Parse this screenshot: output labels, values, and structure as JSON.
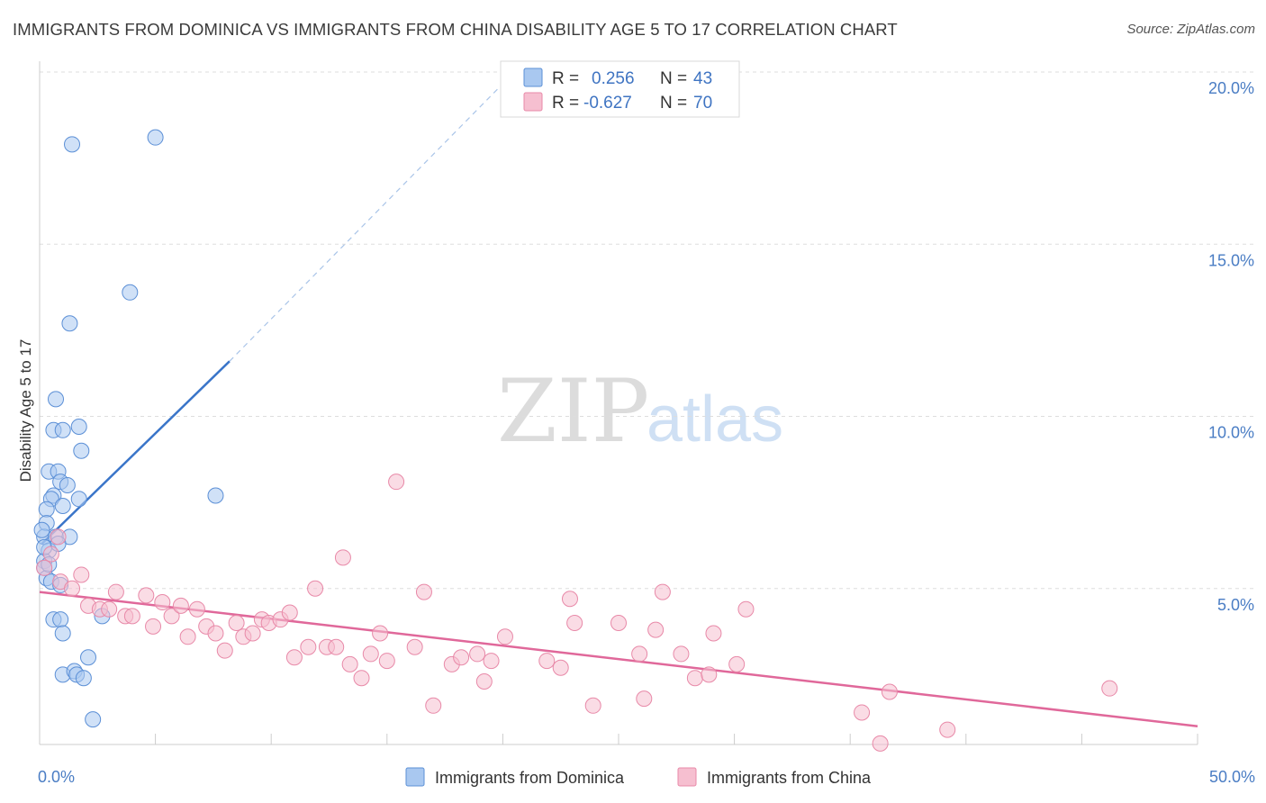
{
  "title": "IMMIGRANTS FROM DOMINICA VS IMMIGRANTS FROM CHINA DISABILITY AGE 5 TO 17 CORRELATION CHART",
  "source": "Source: ZipAtlas.com",
  "watermark": {
    "zip": "ZIP",
    "atlas": "atlas"
  },
  "colors": {
    "dominica_fill": "#a9c8f0",
    "dominica_stroke": "#5b8fd6",
    "dominica_line": "#3a75c9",
    "china_fill": "#f6bfd0",
    "china_stroke": "#e889a8",
    "china_line": "#e0689a",
    "grid": "#dddddd",
    "axis_text": "#4a7dc4"
  },
  "legend": {
    "rows": [
      {
        "r_label": "R =",
        "r_value": "0.256",
        "n_label": "N =",
        "n_value": "43"
      },
      {
        "r_label": "R =",
        "r_value": "-0.627",
        "n_label": "N =",
        "n_value": "70"
      }
    ]
  },
  "chart_data": {
    "type": "scatter",
    "title": "IMMIGRANTS FROM DOMINICA VS IMMIGRANTS FROM CHINA DISABILITY AGE 5 TO 17 CORRELATION CHART",
    "xlabel": "",
    "ylabel": "Disability Age 5 to 17",
    "xlim": [
      0,
      50
    ],
    "ylim": [
      0,
      20
    ],
    "x_tick_labels": [
      "0.0%",
      "50.0%"
    ],
    "y_ticks": [
      5,
      10,
      15,
      20
    ],
    "y_tick_labels": [
      "5.0%",
      "10.0%",
      "15.0%",
      "20.0%"
    ],
    "grid": true,
    "legend_position": "top-center",
    "series": [
      {
        "name": "Immigrants from Dominica",
        "r": 0.256,
        "n": 43,
        "trend": {
          "x": [
            0.1,
            8.2
          ],
          "y": [
            6.3,
            11.6
          ]
        },
        "trend_extension": {
          "x": [
            8.2,
            20.5
          ],
          "y": [
            11.6,
            20.0
          ]
        },
        "points": [
          {
            "x": 1.4,
            "y": 17.9
          },
          {
            "x": 5.0,
            "y": 18.1
          },
          {
            "x": 3.9,
            "y": 13.6
          },
          {
            "x": 1.3,
            "y": 12.7
          },
          {
            "x": 0.7,
            "y": 10.5
          },
          {
            "x": 0.6,
            "y": 9.6
          },
          {
            "x": 1.0,
            "y": 9.6
          },
          {
            "x": 1.7,
            "y": 9.7
          },
          {
            "x": 1.8,
            "y": 9.0
          },
          {
            "x": 0.4,
            "y": 8.4
          },
          {
            "x": 0.8,
            "y": 8.4
          },
          {
            "x": 0.9,
            "y": 8.1
          },
          {
            "x": 0.6,
            "y": 7.7
          },
          {
            "x": 0.5,
            "y": 7.6
          },
          {
            "x": 1.7,
            "y": 7.6
          },
          {
            "x": 1.0,
            "y": 7.4
          },
          {
            "x": 0.3,
            "y": 7.3
          },
          {
            "x": 7.6,
            "y": 7.7
          },
          {
            "x": 0.3,
            "y": 6.9
          },
          {
            "x": 0.2,
            "y": 6.5
          },
          {
            "x": 0.7,
            "y": 6.5
          },
          {
            "x": 1.3,
            "y": 6.5
          },
          {
            "x": 0.4,
            "y": 6.1
          },
          {
            "x": 0.2,
            "y": 5.8
          },
          {
            "x": 0.2,
            "y": 5.6
          },
          {
            "x": 0.3,
            "y": 5.3
          },
          {
            "x": 0.5,
            "y": 5.2
          },
          {
            "x": 0.9,
            "y": 5.1
          },
          {
            "x": 0.6,
            "y": 4.1
          },
          {
            "x": 0.9,
            "y": 4.1
          },
          {
            "x": 1.0,
            "y": 3.7
          },
          {
            "x": 2.7,
            "y": 4.2
          },
          {
            "x": 2.1,
            "y": 3.0
          },
          {
            "x": 1.0,
            "y": 2.5
          },
          {
            "x": 1.5,
            "y": 2.6
          },
          {
            "x": 1.6,
            "y": 2.5
          },
          {
            "x": 1.9,
            "y": 2.4
          },
          {
            "x": 2.3,
            "y": 1.2
          },
          {
            "x": 0.1,
            "y": 6.7
          },
          {
            "x": 0.2,
            "y": 6.2
          },
          {
            "x": 0.4,
            "y": 5.7
          },
          {
            "x": 1.2,
            "y": 8.0
          },
          {
            "x": 0.8,
            "y": 6.3
          }
        ]
      },
      {
        "name": "Immigrants from China",
        "r": -0.627,
        "n": 70,
        "trend": {
          "x": [
            0,
            50
          ],
          "y": [
            4.9,
            1.0
          ]
        },
        "points": [
          {
            "x": 0.2,
            "y": 5.6
          },
          {
            "x": 0.5,
            "y": 6.0
          },
          {
            "x": 0.8,
            "y": 6.5
          },
          {
            "x": 0.9,
            "y": 5.2
          },
          {
            "x": 1.4,
            "y": 5.0
          },
          {
            "x": 1.8,
            "y": 5.4
          },
          {
            "x": 2.1,
            "y": 4.5
          },
          {
            "x": 2.6,
            "y": 4.4
          },
          {
            "x": 3.0,
            "y": 4.4
          },
          {
            "x": 3.3,
            "y": 4.9
          },
          {
            "x": 3.7,
            "y": 4.2
          },
          {
            "x": 4.0,
            "y": 4.2
          },
          {
            "x": 4.6,
            "y": 4.8
          },
          {
            "x": 4.9,
            "y": 3.9
          },
          {
            "x": 5.3,
            "y": 4.6
          },
          {
            "x": 5.7,
            "y": 4.2
          },
          {
            "x": 6.1,
            "y": 4.5
          },
          {
            "x": 6.4,
            "y": 3.6
          },
          {
            "x": 6.8,
            "y": 4.4
          },
          {
            "x": 7.2,
            "y": 3.9
          },
          {
            "x": 7.6,
            "y": 3.7
          },
          {
            "x": 8.0,
            "y": 3.2
          },
          {
            "x": 8.5,
            "y": 4.0
          },
          {
            "x": 8.8,
            "y": 3.6
          },
          {
            "x": 9.2,
            "y": 3.7
          },
          {
            "x": 9.6,
            "y": 4.1
          },
          {
            "x": 9.9,
            "y": 4.0
          },
          {
            "x": 10.4,
            "y": 4.1
          },
          {
            "x": 10.8,
            "y": 4.3
          },
          {
            "x": 11.0,
            "y": 3.0
          },
          {
            "x": 11.6,
            "y": 3.3
          },
          {
            "x": 11.9,
            "y": 5.0
          },
          {
            "x": 12.4,
            "y": 3.3
          },
          {
            "x": 12.8,
            "y": 3.3
          },
          {
            "x": 13.1,
            "y": 5.9
          },
          {
            "x": 13.4,
            "y": 2.8
          },
          {
            "x": 13.9,
            "y": 2.4
          },
          {
            "x": 14.3,
            "y": 3.1
          },
          {
            "x": 14.7,
            "y": 3.7
          },
          {
            "x": 15.0,
            "y": 2.9
          },
          {
            "x": 15.4,
            "y": 8.1
          },
          {
            "x": 16.2,
            "y": 3.3
          },
          {
            "x": 16.6,
            "y": 4.9
          },
          {
            "x": 17.0,
            "y": 1.6
          },
          {
            "x": 17.8,
            "y": 2.8
          },
          {
            "x": 18.2,
            "y": 3.0
          },
          {
            "x": 18.9,
            "y": 3.1
          },
          {
            "x": 19.2,
            "y": 2.3
          },
          {
            "x": 19.5,
            "y": 2.9
          },
          {
            "x": 20.1,
            "y": 3.6
          },
          {
            "x": 21.9,
            "y": 2.9
          },
          {
            "x": 22.5,
            "y": 2.7
          },
          {
            "x": 22.9,
            "y": 4.7
          },
          {
            "x": 23.1,
            "y": 4.0
          },
          {
            "x": 23.9,
            "y": 1.6
          },
          {
            "x": 25.0,
            "y": 4.0
          },
          {
            "x": 25.9,
            "y": 3.1
          },
          {
            "x": 26.1,
            "y": 1.8
          },
          {
            "x": 26.6,
            "y": 3.8
          },
          {
            "x": 26.9,
            "y": 4.9
          },
          {
            "x": 27.7,
            "y": 3.1
          },
          {
            "x": 28.3,
            "y": 2.4
          },
          {
            "x": 28.9,
            "y": 2.5
          },
          {
            "x": 29.1,
            "y": 3.7
          },
          {
            "x": 30.1,
            "y": 2.8
          },
          {
            "x": 30.5,
            "y": 4.4
          },
          {
            "x": 35.5,
            "y": 1.4
          },
          {
            "x": 36.3,
            "y": 0.5
          },
          {
            "x": 36.7,
            "y": 2.0
          },
          {
            "x": 39.2,
            "y": 0.9
          },
          {
            "x": 46.2,
            "y": 2.1
          }
        ]
      }
    ]
  }
}
